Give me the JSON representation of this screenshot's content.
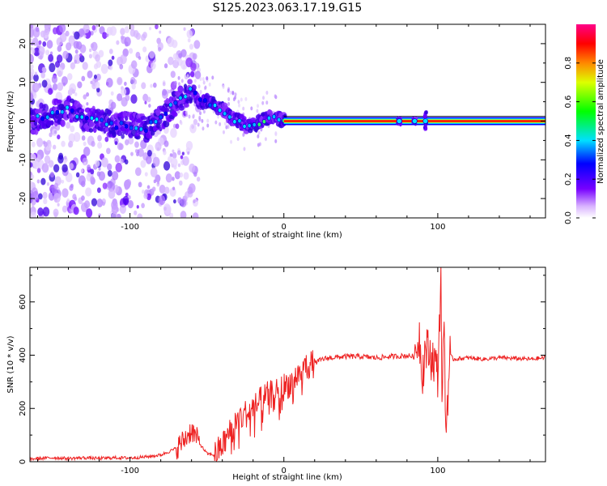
{
  "figure": {
    "title": "S125.2023.063.17.19.G15"
  },
  "colors": {
    "snr_line": "#ee2222",
    "frame": "#000000",
    "colormap": "rainbow (purple at 0 to magenta at 1)"
  },
  "chart_data": [
    {
      "type": "heatmap",
      "title": "",
      "xlabel": "Height of straight line (km)",
      "ylabel": "Frequency (Hz)",
      "xlim": [
        -165,
        170
      ],
      "ylim": [
        -25,
        25
      ],
      "x_ticks": [
        -100,
        0,
        100
      ],
      "y_ticks": [
        -20,
        -10,
        0,
        10,
        20
      ],
      "colorbar": {
        "label": "Normalized spectral amplitude",
        "range": [
          0,
          1
        ],
        "ticks": [
          "0.0",
          "0.2",
          "0.4",
          "0.6",
          "0.8"
        ]
      },
      "ridge": {
        "description_points": [
          {
            "x": -160,
            "y": 1
          },
          {
            "x": -150,
            "y": 2
          },
          {
            "x": -140,
            "y": 3
          },
          {
            "x": -130,
            "y": 1
          },
          {
            "x": -120,
            "y": 0
          },
          {
            "x": -110,
            "y": -1
          },
          {
            "x": -100,
            "y": -1
          },
          {
            "x": -90,
            "y": -2
          },
          {
            "x": -85,
            "y": 0
          },
          {
            "x": -80,
            "y": 1
          },
          {
            "x": -75,
            "y": 3
          },
          {
            "x": -70,
            "y": 5
          },
          {
            "x": -65,
            "y": 6
          },
          {
            "x": -60,
            "y": 8
          },
          {
            "x": -55,
            "y": 5
          },
          {
            "x": -50,
            "y": 5
          },
          {
            "x": -45,
            "y": 4
          },
          {
            "x": -40,
            "y": 3
          },
          {
            "x": -35,
            "y": 1
          },
          {
            "x": -30,
            "y": 0
          },
          {
            "x": -25,
            "y": -1
          },
          {
            "x": -20,
            "y": -1
          },
          {
            "x": -15,
            "y": 0
          },
          {
            "x": -10,
            "y": 1
          },
          {
            "x": -5,
            "y": 1
          },
          {
            "x": 0,
            "y": 0
          },
          {
            "x": 170,
            "y": 0
          }
        ],
        "strong_band_from_km": 0,
        "disturbances_near_km": [
          75,
          85,
          92
        ]
      }
    },
    {
      "type": "line",
      "title": "",
      "xlabel": "Height of straight line (km)",
      "ylabel": "SNR (10 * v/v)",
      "xlim": [
        -165,
        170
      ],
      "ylim": [
        0,
        730
      ],
      "x_ticks": [
        -100,
        0,
        100
      ],
      "y_ticks": [
        0,
        200,
        400,
        600
      ],
      "series": [
        {
          "x": [
            -165,
            -150,
            -140,
            -130,
            -120,
            -110,
            -100,
            -90,
            -80,
            -70,
            -65,
            -60,
            -55,
            -50,
            -45,
            -40,
            -35,
            -30,
            -25,
            -20,
            -15,
            -10,
            -5,
            0,
            5,
            10,
            15,
            20,
            25,
            30,
            40,
            50,
            60,
            70,
            80,
            85,
            88,
            90,
            92,
            95,
            98,
            100,
            102,
            103,
            104,
            105,
            108,
            110,
            120,
            130,
            140,
            150,
            160,
            170
          ],
          "values": [
            10,
            15,
            12,
            15,
            12,
            15,
            14,
            18,
            25,
            50,
            80,
            120,
            70,
            30,
            25,
            60,
            110,
            160,
            180,
            200,
            230,
            250,
            260,
            280,
            300,
            330,
            360,
            370,
            385,
            390,
            395,
            395,
            390,
            395,
            398,
            395,
            480,
            330,
            430,
            400,
            380,
            320,
            700,
            150,
            650,
            100,
            400,
            385,
            390,
            385,
            390,
            388,
            385,
            390
          ]
        }
      ]
    }
  ]
}
